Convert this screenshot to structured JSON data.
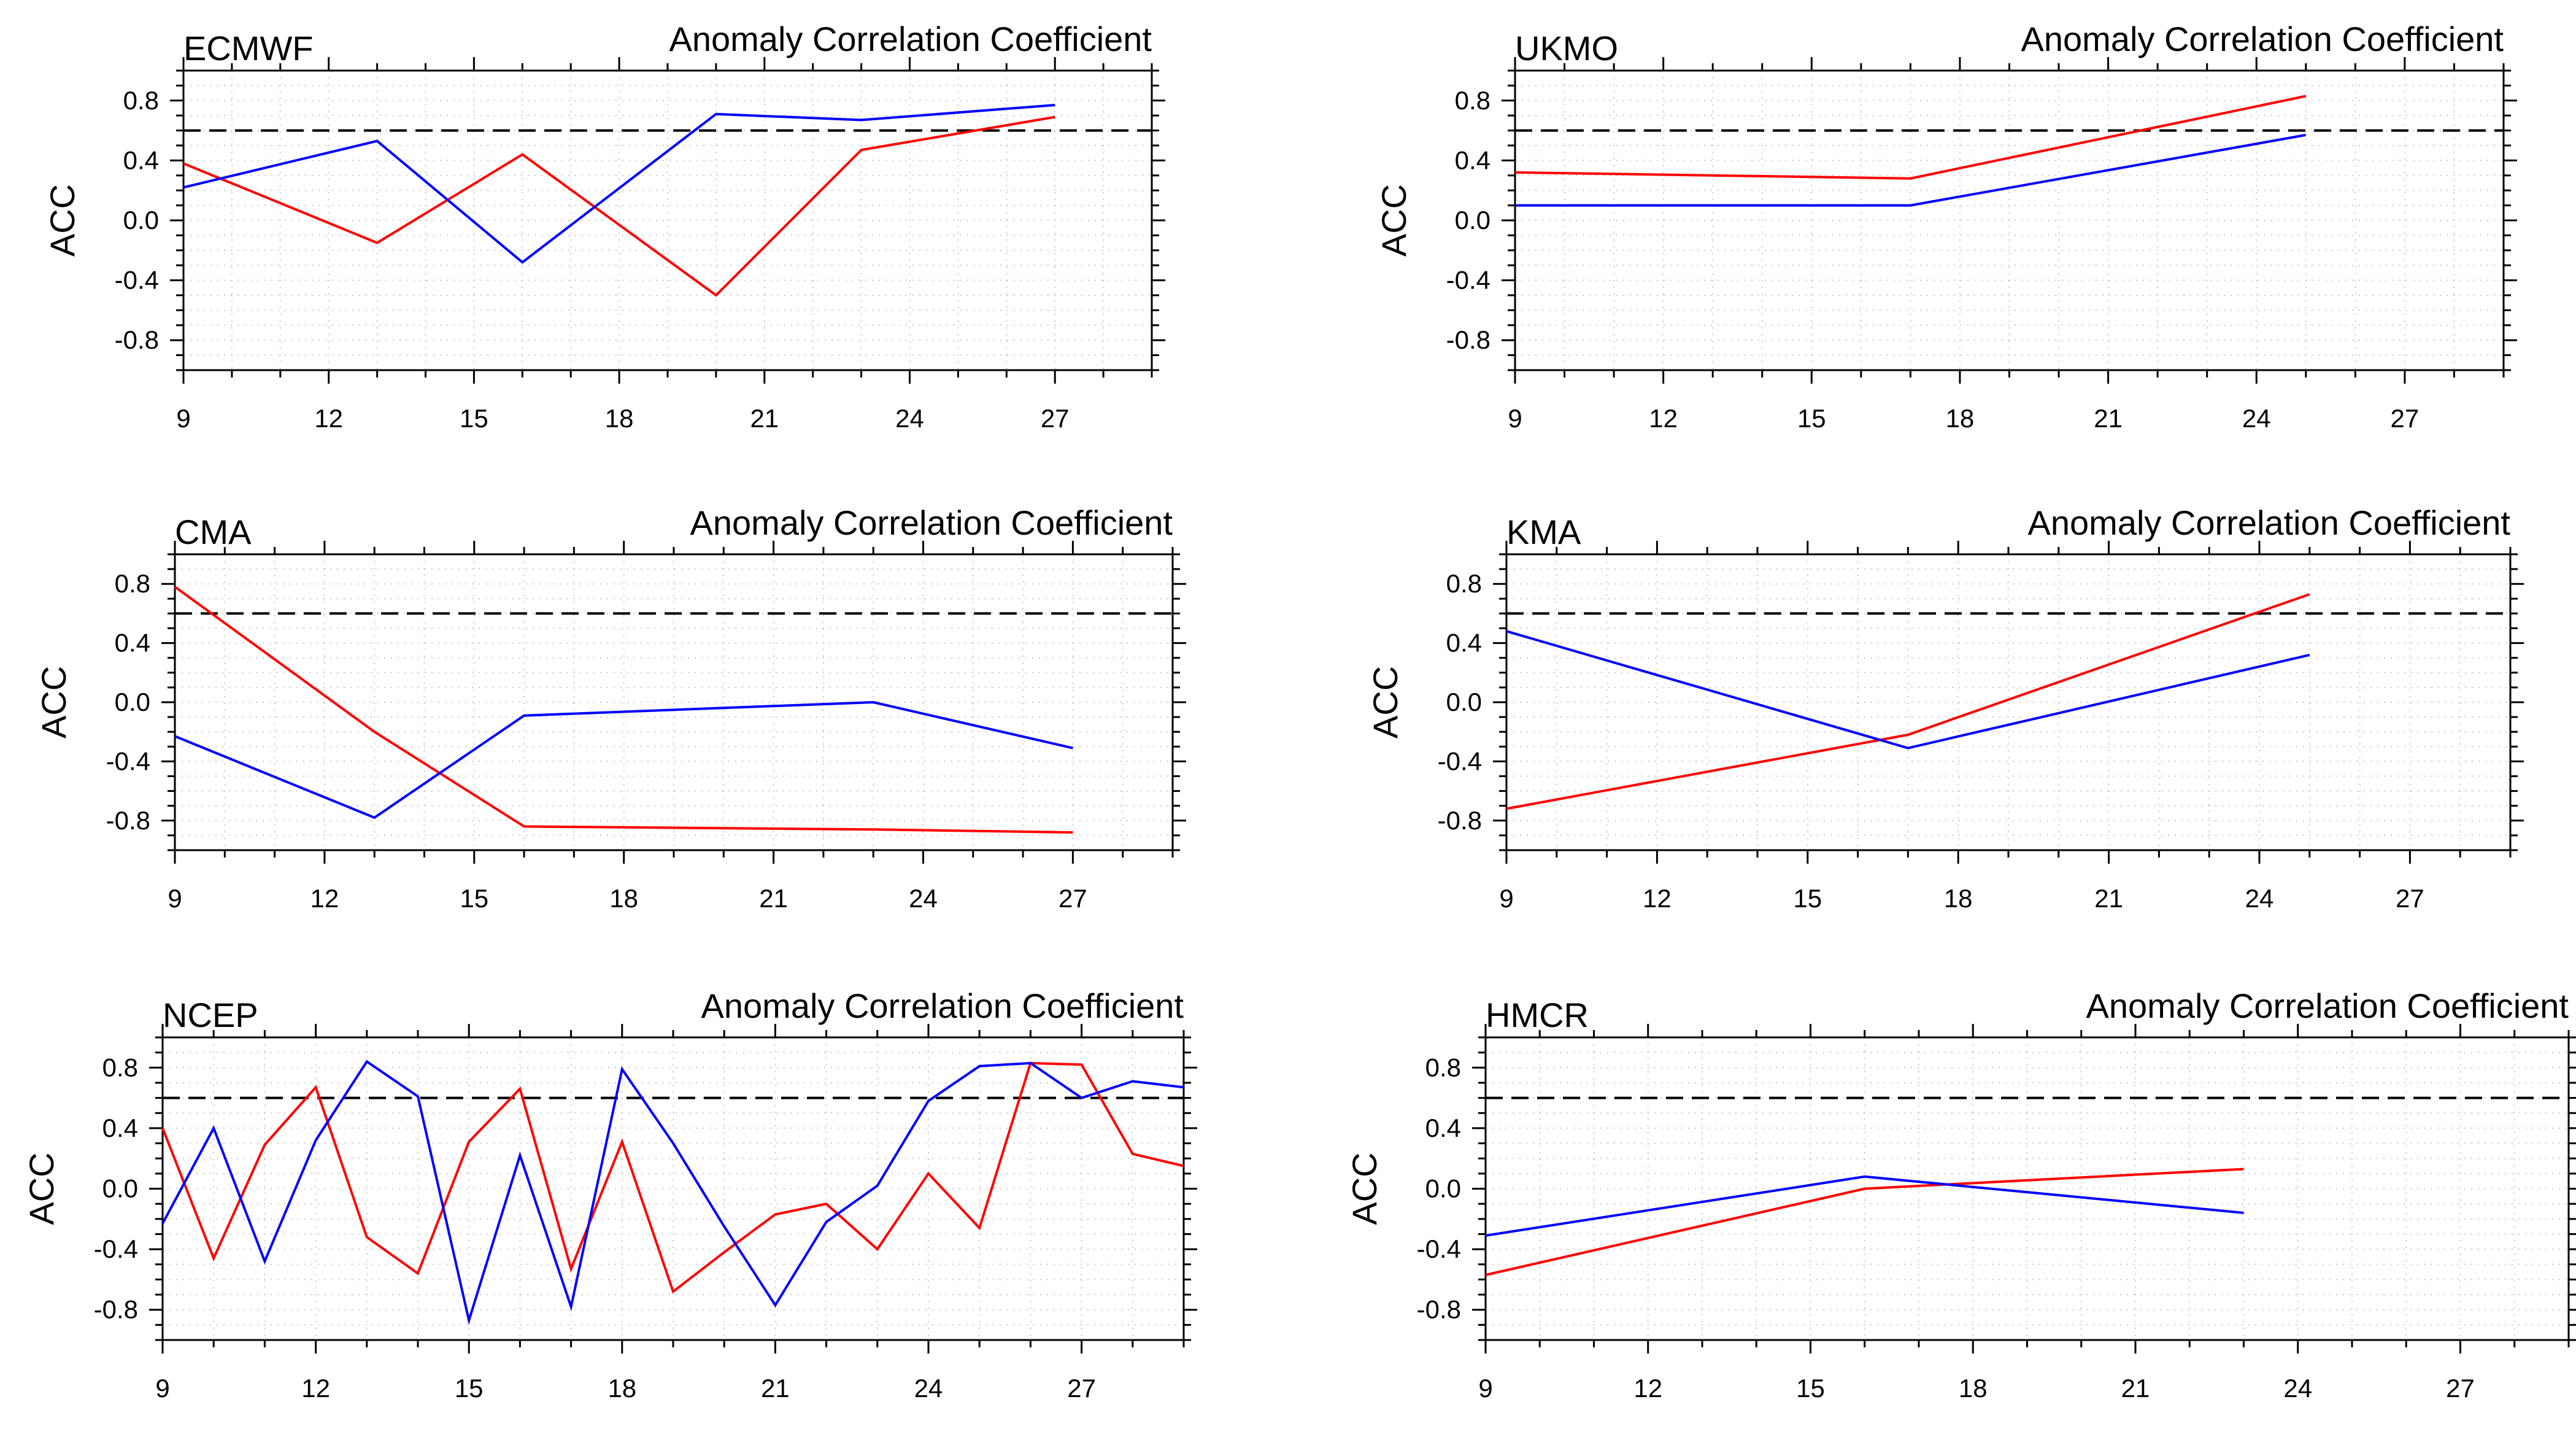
{
  "figure": {
    "colors": {
      "series_a": "#ff0000",
      "series_b": "#0000ff",
      "reference": "#000000",
      "grid": "#c8c8c8"
    }
  },
  "chart_data": [
    {
      "type": "line",
      "model": "ECMWF",
      "title": "Anomaly Correlation Coefficient",
      "xlabel": "",
      "ylabel": "ACC",
      "xlim": [
        9,
        29
      ],
      "ylim": [
        -1,
        1
      ],
      "xticks": [
        9,
        12,
        15,
        18,
        21,
        24,
        27
      ],
      "xtick_labels": [
        "9",
        "12",
        "15",
        "18",
        "21",
        "24",
        "27"
      ],
      "yticks": [
        -0.8,
        -0.4,
        0.0,
        0.4,
        0.8
      ],
      "ytick_labels": [
        "-0.8",
        "-0.4",
        "0.0",
        "0.4",
        "0.8"
      ],
      "reference_line": 0.6,
      "series": [
        {
          "name": "red",
          "color": "#ff0000",
          "x": [
            9,
            13,
            16,
            20,
            23,
            27
          ],
          "values": [
            0.38,
            -0.15,
            0.44,
            -0.5,
            0.47,
            0.69
          ]
        },
        {
          "name": "blue",
          "color": "#0000ff",
          "x": [
            9,
            13,
            16,
            20,
            23,
            27
          ],
          "values": [
            0.22,
            0.53,
            -0.28,
            0.71,
            0.67,
            0.77
          ]
        }
      ]
    },
    {
      "type": "line",
      "model": "UKMO",
      "title": "Anomaly Correlation Coefficient",
      "xlabel": "",
      "ylabel": "ACC",
      "xlim": [
        9,
        29
      ],
      "ylim": [
        -1,
        1
      ],
      "xticks": [
        9,
        12,
        15,
        18,
        21,
        24,
        27
      ],
      "xtick_labels": [
        "9",
        "12",
        "15",
        "18",
        "21",
        "24",
        "27"
      ],
      "yticks": [
        -0.8,
        -0.4,
        0.0,
        0.4,
        0.8
      ],
      "ytick_labels": [
        "-0.8",
        "-0.4",
        "0.0",
        "0.4",
        "0.8"
      ],
      "reference_line": 0.6,
      "series": [
        {
          "name": "red",
          "color": "#ff0000",
          "x": [
            9,
            17,
            25
          ],
          "values": [
            0.32,
            0.28,
            0.83
          ]
        },
        {
          "name": "blue",
          "color": "#0000ff",
          "x": [
            9,
            17,
            25
          ],
          "values": [
            0.1,
            0.1,
            0.57
          ]
        }
      ]
    },
    {
      "type": "line",
      "model": "CMA",
      "title": "Anomaly Correlation Coefficient",
      "xlabel": "",
      "ylabel": "ACC",
      "xlim": [
        9,
        29
      ],
      "ylim": [
        -1,
        1
      ],
      "xticks": [
        9,
        12,
        15,
        18,
        21,
        24,
        27
      ],
      "xtick_labels": [
        "9",
        "12",
        "15",
        "18",
        "21",
        "24",
        "27"
      ],
      "yticks": [
        -0.8,
        -0.4,
        0.0,
        0.4,
        0.8
      ],
      "ytick_labels": [
        "-0.8",
        "-0.4",
        "0.0",
        "0.4",
        "0.8"
      ],
      "reference_line": 0.6,
      "series": [
        {
          "name": "red",
          "color": "#ff0000",
          "x": [
            9,
            13,
            16,
            23,
            27
          ],
          "values": [
            0.78,
            -0.2,
            -0.84,
            -0.86,
            -0.88
          ]
        },
        {
          "name": "blue",
          "color": "#0000ff",
          "x": [
            9,
            13,
            16,
            23,
            27
          ],
          "values": [
            -0.23,
            -0.78,
            -0.09,
            0.0,
            -0.31
          ]
        }
      ]
    },
    {
      "type": "line",
      "model": "KMA",
      "title": "Anomaly Correlation Coefficient",
      "xlabel": "",
      "ylabel": "ACC",
      "xlim": [
        9,
        29
      ],
      "ylim": [
        -1,
        1
      ],
      "xticks": [
        9,
        12,
        15,
        18,
        21,
        24,
        27
      ],
      "xtick_labels": [
        "9",
        "12",
        "15",
        "18",
        "21",
        "24",
        "27"
      ],
      "yticks": [
        -0.8,
        -0.4,
        0.0,
        0.4,
        0.8
      ],
      "ytick_labels": [
        "-0.8",
        "-0.4",
        "0.0",
        "0.4",
        "0.8"
      ],
      "reference_line": 0.6,
      "series": [
        {
          "name": "red",
          "color": "#ff0000",
          "x": [
            9,
            17,
            25
          ],
          "values": [
            -0.72,
            -0.22,
            0.73
          ]
        },
        {
          "name": "blue",
          "color": "#0000ff",
          "x": [
            9,
            17,
            25
          ],
          "values": [
            0.48,
            -0.31,
            0.32
          ]
        }
      ]
    },
    {
      "type": "line",
      "model": "NCEP",
      "title": "Anomaly Correlation Coefficient",
      "xlabel": "",
      "ylabel": "ACC",
      "xlim": [
        9,
        29
      ],
      "ylim": [
        -1,
        1
      ],
      "xticks": [
        9,
        12,
        15,
        18,
        21,
        24,
        27
      ],
      "xtick_labels": [
        "9",
        "12",
        "15",
        "18",
        "21",
        "24",
        "27"
      ],
      "yticks": [
        -0.8,
        -0.4,
        0.0,
        0.4,
        0.8
      ],
      "ytick_labels": [
        "-0.8",
        "-0.4",
        "0.0",
        "0.4",
        "0.8"
      ],
      "reference_line": 0.6,
      "series": [
        {
          "name": "red",
          "color": "#ff0000",
          "x": [
            9,
            10,
            11,
            12,
            13,
            14,
            15,
            16,
            17,
            18,
            19,
            20,
            21,
            22,
            23,
            24,
            25,
            26,
            27,
            28,
            29
          ],
          "values": [
            0.4,
            -0.46,
            0.29,
            0.67,
            -0.32,
            -0.56,
            0.31,
            0.66,
            -0.53,
            0.31,
            -0.68,
            -0.42,
            -0.17,
            -0.1,
            -0.4,
            0.1,
            -0.26,
            0.83,
            0.82,
            0.23,
            0.15
          ]
        },
        {
          "name": "blue",
          "color": "#0000ff",
          "x": [
            9,
            10,
            11,
            12,
            13,
            14,
            15,
            16,
            17,
            18,
            19,
            20,
            21,
            22,
            23,
            24,
            25,
            26,
            27,
            28,
            29
          ],
          "values": [
            -0.23,
            0.4,
            -0.48,
            0.32,
            0.84,
            0.61,
            -0.87,
            0.22,
            -0.78,
            0.79,
            0.3,
            -0.25,
            -0.77,
            -0.22,
            0.02,
            0.58,
            0.81,
            0.83,
            0.6,
            0.71,
            0.67
          ]
        }
      ]
    },
    {
      "type": "line",
      "model": "HMCR",
      "title": "Anomaly Correlation Coefficient",
      "xlabel": "",
      "ylabel": "ACC",
      "xlim": [
        9,
        29
      ],
      "ylim": [
        -1,
        1
      ],
      "xticks": [
        9,
        12,
        15,
        18,
        21,
        24,
        27
      ],
      "xtick_labels": [
        "9",
        "12",
        "15",
        "18",
        "21",
        "24",
        "27"
      ],
      "yticks": [
        -0.8,
        -0.4,
        0.0,
        0.4,
        0.8
      ],
      "ytick_labels": [
        "-0.8",
        "-0.4",
        "0.0",
        "0.4",
        "0.8"
      ],
      "reference_line": 0.6,
      "series": [
        {
          "name": "red",
          "color": "#ff0000",
          "x": [
            9,
            16,
            23
          ],
          "values": [
            -0.57,
            0.0,
            0.13
          ]
        },
        {
          "name": "blue",
          "color": "#0000ff",
          "x": [
            9,
            16,
            23
          ],
          "values": [
            -0.31,
            0.08,
            -0.16
          ]
        }
      ]
    }
  ]
}
